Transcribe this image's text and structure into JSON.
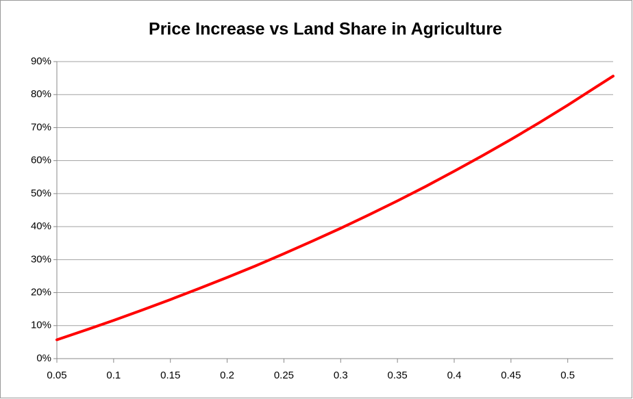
{
  "chart_data": {
    "type": "line",
    "title": "Price Increase vs Land Share in Agriculture",
    "x": [
      0.05,
      0.075,
      0.1,
      0.125,
      0.15,
      0.175,
      0.2,
      0.225,
      0.25,
      0.275,
      0.3,
      0.325,
      0.35,
      0.375,
      0.4,
      0.425,
      0.45,
      0.475,
      0.5,
      0.525,
      0.54
    ],
    "series": [
      {
        "name": "Price Increase",
        "color": "#ff0000",
        "values": [
          5.7,
          8.6,
          11.6,
          14.7,
          17.9,
          21.2,
          24.6,
          28.1,
          31.8,
          35.6,
          39.5,
          43.6,
          47.8,
          52.2,
          56.8,
          61.5,
          66.4,
          71.5,
          76.8,
          82.3,
          85.6
        ]
      }
    ],
    "xlim": [
      0.05,
      0.54
    ],
    "xticks": [
      0.05,
      0.1,
      0.15,
      0.2,
      0.25,
      0.3,
      0.35,
      0.4,
      0.45,
      0.5
    ],
    "ylim": [
      0,
      90
    ],
    "yticks": [
      {
        "value": 0,
        "label": "0%"
      },
      {
        "value": 10,
        "label": "10%"
      },
      {
        "value": 20,
        "label": "20%"
      },
      {
        "value": 30,
        "label": "30%"
      },
      {
        "value": 40,
        "label": "40%"
      },
      {
        "value": 50,
        "label": "50%"
      },
      {
        "value": 60,
        "label": "60%"
      },
      {
        "value": 70,
        "label": "70%"
      },
      {
        "value": 80,
        "label": "80%"
      },
      {
        "value": 90,
        "label": "90%"
      }
    ],
    "grid": true
  }
}
